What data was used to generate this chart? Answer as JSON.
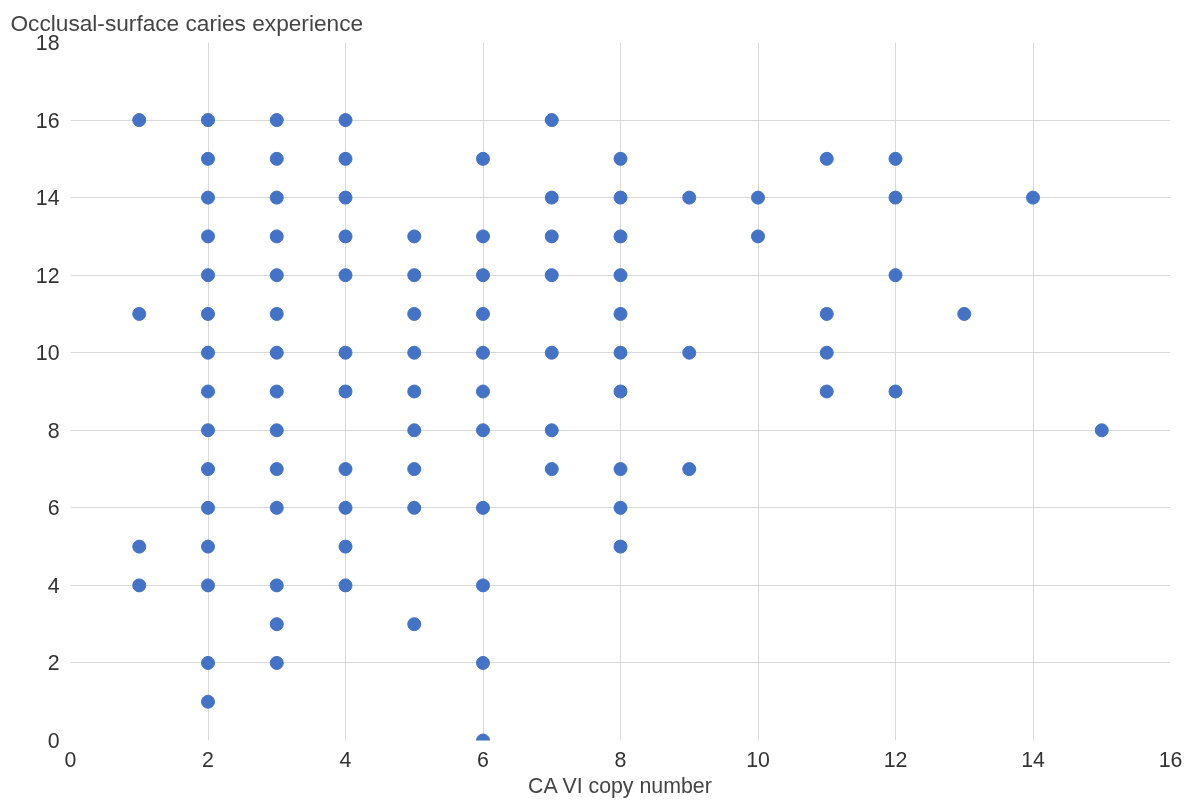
{
  "chart_data": {
    "type": "scatter",
    "xlabel": "CA VI copy number",
    "ylabel": "Occlusal-surface caries experience",
    "x": [
      1,
      1,
      1,
      1,
      2,
      2,
      2,
      2,
      2,
      2,
      2,
      2,
      2,
      2,
      2,
      2,
      2,
      2,
      2,
      3,
      3,
      3,
      3,
      3,
      3,
      3,
      3,
      3,
      3,
      3,
      3,
      3,
      3,
      4,
      4,
      4,
      4,
      4,
      4,
      4,
      4,
      4,
      4,
      4,
      5,
      5,
      5,
      5,
      5,
      5,
      5,
      5,
      5,
      6,
      6,
      6,
      6,
      6,
      6,
      6,
      6,
      6,
      6,
      6,
      7,
      7,
      7,
      7,
      7,
      7,
      7,
      8,
      8,
      8,
      8,
      8,
      8,
      8,
      8,
      8,
      8,
      9,
      9,
      9,
      10,
      10,
      11,
      11,
      11,
      11,
      12,
      12,
      12,
      12,
      13,
      14,
      15
    ],
    "series": [
      {
        "color": "#4472c4",
        "values": [
          16,
          11,
          5,
          4,
          16,
          15,
          14,
          13,
          12,
          11,
          10,
          9,
          8,
          7,
          6,
          5,
          4,
          2,
          1,
          16,
          15,
          14,
          13,
          12,
          11,
          10,
          9,
          8,
          7,
          6,
          4,
          3,
          2,
          16,
          15,
          14,
          13,
          12,
          10,
          9,
          7,
          6,
          5,
          4,
          13,
          12,
          11,
          10,
          9,
          8,
          7,
          6,
          3,
          15,
          13,
          12,
          11,
          10,
          9,
          8,
          6,
          4,
          2,
          0,
          16,
          14,
          13,
          12,
          10,
          8,
          7,
          15,
          14,
          13,
          12,
          11,
          10,
          9,
          7,
          6,
          5,
          14,
          10,
          7,
          14,
          13,
          15,
          11,
          10,
          9,
          15,
          14,
          12,
          9,
          11,
          14,
          8
        ]
      }
    ],
    "xlim": [
      0,
      16
    ],
    "ylim": [
      0,
      18
    ],
    "xticks": [
      0,
      2,
      4,
      6,
      8,
      10,
      12,
      14,
      16
    ],
    "yticks": [
      0,
      2,
      4,
      6,
      8,
      10,
      12,
      14,
      16,
      18
    ],
    "grid": true,
    "marker": "circle"
  }
}
